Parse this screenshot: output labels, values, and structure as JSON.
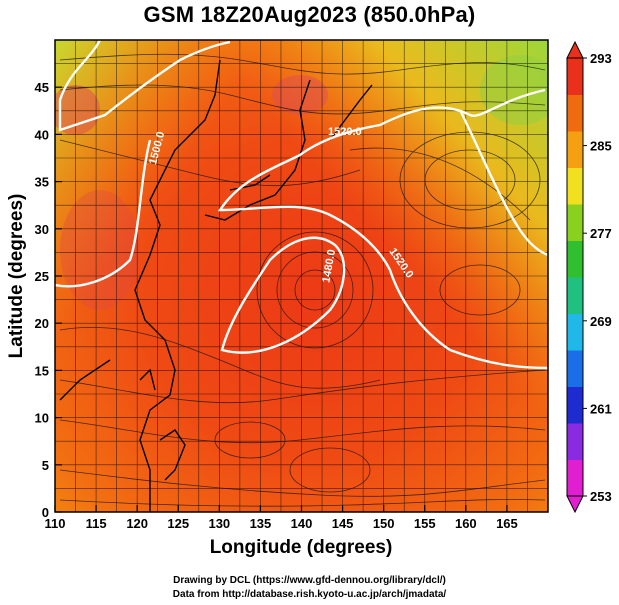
{
  "title": "GSM 18Z20Aug2023 (850.0hPa)",
  "xaxis": {
    "label": "Longitude (degrees)",
    "range": [
      110,
      170
    ],
    "ticks": [
      110,
      115,
      120,
      125,
      130,
      135,
      140,
      145,
      150,
      155,
      160,
      165
    ]
  },
  "yaxis": {
    "label": "Latitude  (degrees)",
    "range": [
      0,
      50
    ],
    "ticks": [
      0,
      5,
      10,
      15,
      20,
      25,
      30,
      35,
      40,
      45
    ]
  },
  "colorbar": {
    "range": [
      253,
      293
    ],
    "labels": [
      293,
      285,
      277,
      269,
      261,
      253
    ],
    "colors": [
      "#e01fd0",
      "#8a2be2",
      "#1e2bcf",
      "#1a6fe8",
      "#1fb8e8",
      "#20c080",
      "#2fbf2f",
      "#8ad11f",
      "#f0e020",
      "#f5a010",
      "#f06a10",
      "#e8301a"
    ]
  },
  "contours": [
    {
      "label": "1520.0"
    },
    {
      "label": "1500.0"
    },
    {
      "label": "1520.0"
    },
    {
      "label": "1480.0"
    }
  ],
  "credits": {
    "line1": "Drawing by DCL (https://www.gfd-dennou.org/library/dcl/)",
    "line2": "Data from http://database.rish.kyoto-u.ac.jp/arch/jmadata/"
  }
}
